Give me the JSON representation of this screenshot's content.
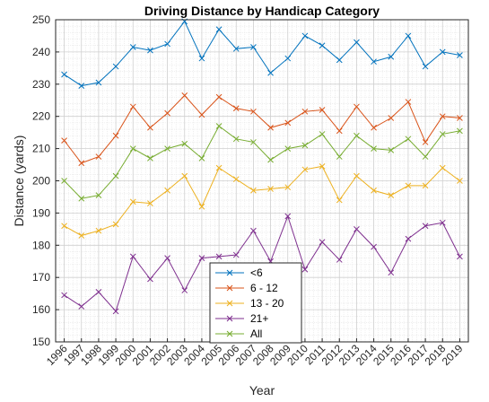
{
  "chart_data": {
    "type": "line",
    "title": "Driving Distance by Handicap Category",
    "xlabel": "Year",
    "ylabel": "Distance (yards)",
    "ylim": [
      150,
      250
    ],
    "yticks": [
      150,
      160,
      170,
      180,
      190,
      200,
      210,
      220,
      230,
      240,
      250
    ],
    "grid": true,
    "legend_position": "bottom-center",
    "marker": "x",
    "x": [
      "1996",
      "1997",
      "1998",
      "1999",
      "2000",
      "2001",
      "2002",
      "2003",
      "2004",
      "2005",
      "2006",
      "2007",
      "2008",
      "2009",
      "2010",
      "2011",
      "2012",
      "2013",
      "2014",
      "2015",
      "2016",
      "2017",
      "2018",
      "2019"
    ],
    "series": [
      {
        "name": "<6",
        "color": "#0072bd",
        "values": [
          233,
          229.5,
          230.5,
          235.5,
          241.5,
          240.5,
          242.5,
          249.5,
          238,
          247,
          241,
          241.5,
          233.5,
          238,
          245,
          242,
          237.5,
          243,
          237,
          238.5,
          245,
          235.5,
          240,
          239
        ]
      },
      {
        "name": "6 - 12",
        "color": "#d95319",
        "values": [
          212.5,
          205.5,
          207.5,
          214,
          223,
          216.5,
          221,
          226.5,
          220.5,
          226,
          222.5,
          221.5,
          216.5,
          218,
          221.5,
          222,
          215.5,
          223,
          216.5,
          219.5,
          224.5,
          212,
          220,
          219.5
        ]
      },
      {
        "name": "13 - 20",
        "color": "#edb120",
        "values": [
          186,
          183,
          184.5,
          186.5,
          193.5,
          193,
          197,
          201.5,
          192,
          204,
          200.5,
          197,
          197.5,
          198,
          203.5,
          204.5,
          194,
          201.5,
          197,
          195.5,
          198.5,
          198.5,
          204,
          200
        ]
      },
      {
        "name": "21+",
        "color": "#7e2f8e",
        "values": [
          164.5,
          161,
          165.5,
          159.5,
          176.5,
          169.5,
          176,
          166,
          176,
          176.5,
          177,
          184.5,
          175,
          189,
          172.5,
          181,
          175.5,
          185,
          179.5,
          171.5,
          182,
          186,
          187,
          176.5
        ]
      },
      {
        "name": "All",
        "color": "#77ac30",
        "values": [
          200,
          194.5,
          195.5,
          201.5,
          210,
          207,
          210,
          211.5,
          207,
          217,
          213,
          212,
          206.5,
          210,
          211,
          214.5,
          207.5,
          214,
          210,
          209.5,
          213,
          207.5,
          214.5,
          215.5
        ]
      }
    ]
  }
}
